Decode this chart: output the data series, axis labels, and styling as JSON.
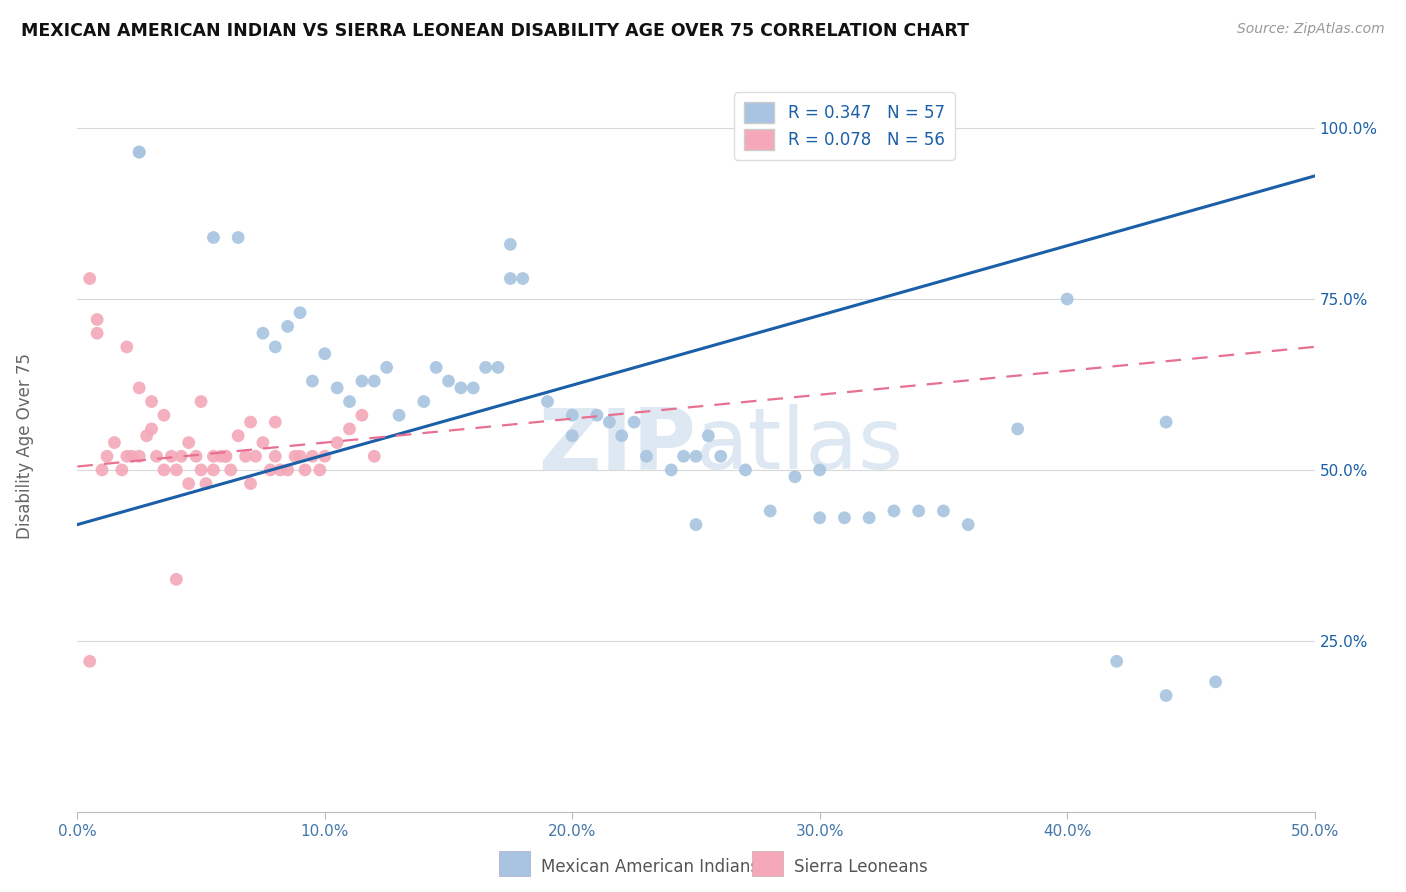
{
  "title": "MEXICAN AMERICAN INDIAN VS SIERRA LEONEAN DISABILITY AGE OVER 75 CORRELATION CHART",
  "source": "Source: ZipAtlas.com",
  "ylabel": "Disability Age Over 75",
  "xmin": 0.0,
  "xmax": 0.5,
  "ymin": 0.0,
  "ymax": 1.07,
  "xtick_labels": [
    "0.0%",
    "10.0%",
    "20.0%",
    "30.0%",
    "40.0%",
    "50.0%"
  ],
  "xtick_vals": [
    0.0,
    0.1,
    0.2,
    0.3,
    0.4,
    0.5
  ],
  "ytick_labels": [
    "25.0%",
    "50.0%",
    "75.0%",
    "100.0%"
  ],
  "ytick_vals": [
    0.25,
    0.5,
    0.75,
    1.0
  ],
  "blue_R": 0.347,
  "blue_N": 57,
  "pink_R": 0.078,
  "pink_N": 56,
  "blue_color": "#a8c4e0",
  "pink_color": "#f4a8b8",
  "blue_line_color": "#1a5fa8",
  "pink_line_color": "#e87090",
  "legend_label_blue": "Mexican American Indians",
  "legend_label_pink": "Sierra Leoneans",
  "watermark_zip": "ZIP",
  "watermark_atlas": "atlas",
  "blue_line_x": [
    0.0,
    0.5
  ],
  "blue_line_y": [
    0.42,
    0.93
  ],
  "pink_line_x": [
    0.0,
    0.5
  ],
  "pink_line_y": [
    0.505,
    0.68
  ],
  "blue_x": [
    0.025,
    0.025,
    0.055,
    0.065,
    0.075,
    0.08,
    0.085,
    0.09,
    0.095,
    0.1,
    0.105,
    0.11,
    0.115,
    0.12,
    0.125,
    0.13,
    0.14,
    0.145,
    0.15,
    0.155,
    0.16,
    0.165,
    0.17,
    0.175,
    0.18,
    0.19,
    0.2,
    0.21,
    0.215,
    0.22,
    0.225,
    0.23,
    0.24,
    0.245,
    0.25,
    0.255,
    0.26,
    0.27,
    0.28,
    0.29,
    0.3,
    0.31,
    0.32,
    0.33,
    0.34,
    0.35,
    0.36,
    0.38,
    0.4,
    0.42,
    0.44,
    0.46,
    0.175,
    0.2,
    0.25,
    0.3,
    0.44
  ],
  "blue_y": [
    0.965,
    0.965,
    0.84,
    0.84,
    0.7,
    0.68,
    0.71,
    0.73,
    0.63,
    0.67,
    0.62,
    0.6,
    0.63,
    0.63,
    0.65,
    0.58,
    0.6,
    0.65,
    0.63,
    0.62,
    0.62,
    0.65,
    0.65,
    0.78,
    0.78,
    0.6,
    0.55,
    0.58,
    0.57,
    0.55,
    0.57,
    0.52,
    0.5,
    0.52,
    0.52,
    0.55,
    0.52,
    0.5,
    0.44,
    0.49,
    0.5,
    0.43,
    0.43,
    0.44,
    0.44,
    0.44,
    0.42,
    0.56,
    0.75,
    0.22,
    0.17,
    0.19,
    0.83,
    0.58,
    0.42,
    0.43,
    0.57
  ],
  "pink_x": [
    0.005,
    0.005,
    0.008,
    0.01,
    0.012,
    0.015,
    0.018,
    0.02,
    0.022,
    0.025,
    0.028,
    0.03,
    0.032,
    0.035,
    0.038,
    0.04,
    0.042,
    0.045,
    0.048,
    0.05,
    0.052,
    0.055,
    0.058,
    0.06,
    0.062,
    0.065,
    0.068,
    0.07,
    0.072,
    0.075,
    0.078,
    0.08,
    0.082,
    0.085,
    0.088,
    0.09,
    0.092,
    0.095,
    0.098,
    0.1,
    0.105,
    0.11,
    0.115,
    0.12,
    0.008,
    0.02,
    0.025,
    0.03,
    0.035,
    0.04,
    0.045,
    0.05,
    0.055,
    0.06,
    0.07,
    0.08
  ],
  "pink_y": [
    0.22,
    0.78,
    0.72,
    0.5,
    0.52,
    0.54,
    0.5,
    0.52,
    0.52,
    0.52,
    0.55,
    0.56,
    0.52,
    0.5,
    0.52,
    0.5,
    0.52,
    0.54,
    0.52,
    0.5,
    0.48,
    0.5,
    0.52,
    0.52,
    0.5,
    0.55,
    0.52,
    0.48,
    0.52,
    0.54,
    0.5,
    0.52,
    0.5,
    0.5,
    0.52,
    0.52,
    0.5,
    0.52,
    0.5,
    0.52,
    0.54,
    0.56,
    0.58,
    0.52,
    0.7,
    0.68,
    0.62,
    0.6,
    0.58,
    0.34,
    0.48,
    0.6,
    0.52,
    0.52,
    0.57,
    0.57
  ]
}
